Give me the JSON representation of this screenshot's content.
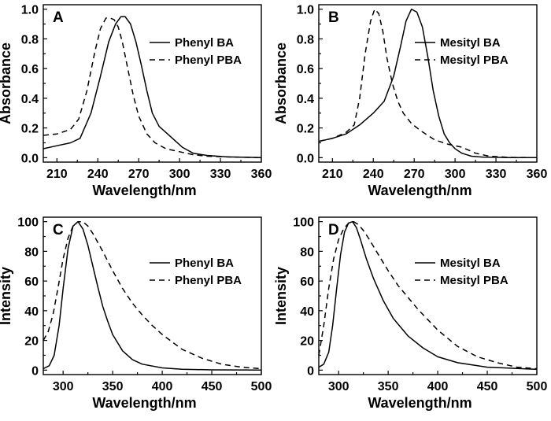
{
  "chart_data": [
    {
      "panel": "A",
      "type": "line",
      "xlabel": "Wavelength/nm",
      "ylabel": "Absorbance",
      "xlim": [
        200,
        360
      ],
      "ylim": [
        -0.03,
        1.03
      ],
      "xticks": [
        210,
        240,
        270,
        300,
        330,
        360
      ],
      "yticks": [
        0.0,
        0.2,
        0.4,
        0.6,
        0.8,
        1.0
      ],
      "ytick_labels": [
        "0.0",
        "0.2",
        "0.4",
        "0.6",
        "0.8",
        "1.0"
      ],
      "legend_position": "right",
      "series": [
        {
          "name": "Phenyl BA",
          "dash": "solid",
          "x": [
            200,
            210,
            220,
            227,
            235,
            242,
            248,
            253,
            257,
            260,
            264,
            268,
            272,
            276,
            280,
            285,
            290,
            296,
            302,
            310,
            320,
            335,
            360
          ],
          "y": [
            0.06,
            0.08,
            0.1,
            0.13,
            0.3,
            0.55,
            0.78,
            0.9,
            0.95,
            0.95,
            0.9,
            0.78,
            0.62,
            0.45,
            0.3,
            0.21,
            0.17,
            0.12,
            0.07,
            0.03,
            0.015,
            0.005,
            0.0
          ]
        },
        {
          "name": "Phenyl PBA",
          "dash": "dashed",
          "x": [
            200,
            210,
            220,
            226,
            232,
            238,
            242,
            246,
            249,
            252,
            255,
            258,
            262,
            266,
            270,
            276,
            282,
            290,
            300,
            310,
            320,
            340,
            360
          ],
          "y": [
            0.15,
            0.16,
            0.19,
            0.26,
            0.45,
            0.72,
            0.87,
            0.94,
            0.94,
            0.93,
            0.88,
            0.78,
            0.6,
            0.42,
            0.28,
            0.16,
            0.1,
            0.06,
            0.04,
            0.02,
            0.01,
            0.004,
            0.0
          ]
        }
      ]
    },
    {
      "panel": "B",
      "type": "line",
      "xlabel": "Wavelength/nm",
      "ylabel": "Absorbance",
      "xlim": [
        200,
        360
      ],
      "ylim": [
        -0.03,
        1.03
      ],
      "xticks": [
        210,
        240,
        270,
        300,
        330,
        360
      ],
      "yticks": [
        0.0,
        0.2,
        0.4,
        0.6,
        0.8,
        1.0
      ],
      "ytick_labels": [
        "0.0",
        "0.2",
        "0.4",
        "0.6",
        "0.8",
        "1.0"
      ],
      "legend_position": "right",
      "series": [
        {
          "name": "Mesityl BA",
          "dash": "solid",
          "x": [
            200,
            210,
            220,
            230,
            240,
            248,
            255,
            260,
            264,
            268,
            272,
            276,
            280,
            284,
            288,
            292,
            296,
            300,
            305,
            312,
            320,
            340,
            360
          ],
          "y": [
            0.11,
            0.13,
            0.16,
            0.22,
            0.3,
            0.38,
            0.55,
            0.75,
            0.92,
            1.0,
            0.98,
            0.88,
            0.68,
            0.45,
            0.28,
            0.16,
            0.1,
            0.06,
            0.03,
            0.01,
            0.004,
            0.001,
            0.0
          ]
        },
        {
          "name": "Mesityl PBA",
          "dash": "dashed",
          "x": [
            200,
            210,
            220,
            226,
            230,
            234,
            238,
            241,
            244,
            247,
            250,
            254,
            258,
            262,
            268,
            275,
            285,
            295,
            305,
            315,
            325,
            340,
            360
          ],
          "y": [
            0.11,
            0.13,
            0.17,
            0.22,
            0.4,
            0.7,
            0.92,
            1.0,
            0.97,
            0.85,
            0.67,
            0.5,
            0.38,
            0.3,
            0.23,
            0.18,
            0.12,
            0.09,
            0.07,
            0.03,
            0.01,
            0.002,
            0.0
          ]
        }
      ]
    },
    {
      "panel": "C",
      "type": "line",
      "xlabel": "Wavelength/nm",
      "ylabel": "Intensity",
      "xlim": [
        280,
        500
      ],
      "ylim": [
        -3,
        103
      ],
      "xticks": [
        300,
        350,
        400,
        450,
        500
      ],
      "yticks": [
        0,
        20,
        40,
        60,
        80,
        100
      ],
      "ytick_labels": [
        "0",
        "20",
        "40",
        "60",
        "80",
        "100"
      ],
      "legend_position": "right",
      "series": [
        {
          "name": "Phenyl BA",
          "dash": "solid",
          "x": [
            280,
            286,
            291,
            296,
            300,
            305,
            310,
            315,
            320,
            325,
            330,
            335,
            340,
            345,
            350,
            360,
            370,
            380,
            400,
            420,
            450,
            500
          ],
          "y": [
            1,
            3,
            10,
            30,
            55,
            82,
            97,
            100,
            95,
            84,
            70,
            56,
            43,
            33,
            24,
            13,
            7,
            4,
            1.5,
            0.6,
            0.2,
            0.0
          ]
        },
        {
          "name": "Phenyl PBA",
          "dash": "dashed",
          "x": [
            280,
            285,
            290,
            295,
            300,
            305,
            310,
            315,
            320,
            325,
            330,
            340,
            350,
            360,
            370,
            380,
            390,
            400,
            420,
            440,
            460,
            480,
            500
          ],
          "y": [
            20,
            26,
            38,
            56,
            75,
            89,
            97,
            100,
            100,
            97,
            92,
            80,
            67,
            55,
            45,
            37,
            30,
            24,
            14,
            8,
            4,
            2,
            1
          ]
        }
      ]
    },
    {
      "panel": "D",
      "type": "line",
      "xlabel": "Wavelength/nm",
      "ylabel": "Intensity",
      "xlim": [
        280,
        500
      ],
      "ylim": [
        -3,
        103
      ],
      "xticks": [
        300,
        350,
        400,
        450,
        500
      ],
      "yticks": [
        0,
        20,
        40,
        60,
        80,
        100
      ],
      "ytick_labels": [
        "0",
        "20",
        "40",
        "60",
        "80",
        "100"
      ],
      "legend_position": "right",
      "series": [
        {
          "name": "Mesityl BA",
          "dash": "solid",
          "x": [
            280,
            285,
            290,
            294,
            298,
            302,
            306,
            310,
            314,
            318,
            322,
            328,
            335,
            345,
            355,
            370,
            385,
            400,
            420,
            450,
            500
          ],
          "y": [
            2,
            4,
            12,
            30,
            55,
            78,
            93,
            99,
            100,
            96,
            88,
            75,
            62,
            47,
            35,
            23,
            15,
            9,
            5,
            2,
            0.5
          ]
        },
        {
          "name": "Mesityl PBA",
          "dash": "dashed",
          "x": [
            280,
            285,
            290,
            295,
            300,
            305,
            310,
            315,
            320,
            325,
            330,
            340,
            350,
            360,
            370,
            380,
            390,
            400,
            420,
            440,
            460,
            480,
            500
          ],
          "y": [
            10,
            30,
            55,
            75,
            88,
            95,
            99,
            100,
            98,
            94,
            89,
            78,
            67,
            57,
            49,
            41,
            34,
            27,
            16,
            9,
            5,
            2,
            1
          ]
        }
      ]
    }
  ]
}
